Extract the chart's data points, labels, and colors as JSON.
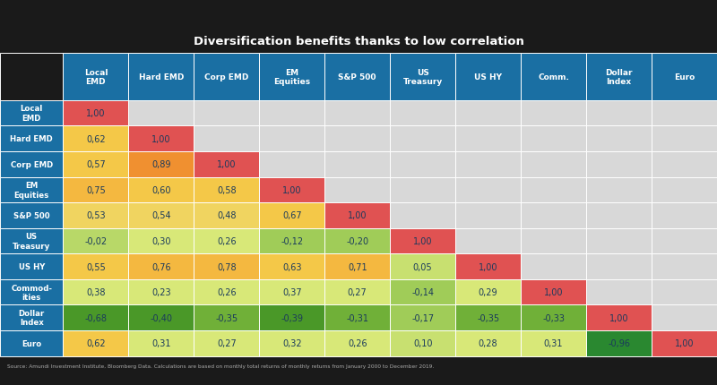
{
  "title": "Diversification benefits thanks to low correlation",
  "col_headers": [
    "Local\nEMD",
    "Hard EMD",
    "Corp EMD",
    "EM\nEquities",
    "S&P 500",
    "US\nTreasury",
    "US HY",
    "Comm.",
    "Dollar\nIndex",
    "Euro"
  ],
  "row_headers": [
    "Local\nEMD",
    "Hard EMD",
    "Corp EMD",
    "EM\nEquities",
    "S&P 500",
    "US\nTreasury",
    "US HY",
    "Commod-\nities",
    "Dollar\nIndex",
    "Euro"
  ],
  "values": [
    [
      1.0,
      null,
      null,
      null,
      null,
      null,
      null,
      null,
      null,
      null
    ],
    [
      0.62,
      1.0,
      null,
      null,
      null,
      null,
      null,
      null,
      null,
      null
    ],
    [
      0.57,
      0.89,
      1.0,
      null,
      null,
      null,
      null,
      null,
      null,
      null
    ],
    [
      0.75,
      0.6,
      0.58,
      1.0,
      null,
      null,
      null,
      null,
      null,
      null
    ],
    [
      0.53,
      0.54,
      0.48,
      0.67,
      1.0,
      null,
      null,
      null,
      null,
      null
    ],
    [
      -0.02,
      0.3,
      0.26,
      -0.12,
      -0.2,
      1.0,
      null,
      null,
      null,
      null
    ],
    [
      0.55,
      0.76,
      0.78,
      0.63,
      0.71,
      0.05,
      1.0,
      null,
      null,
      null
    ],
    [
      0.38,
      0.23,
      0.26,
      0.37,
      0.27,
      -0.14,
      0.29,
      1.0,
      null,
      null
    ],
    [
      -0.68,
      -0.4,
      -0.35,
      -0.39,
      -0.31,
      -0.17,
      -0.35,
      -0.33,
      1.0,
      null
    ],
    [
      0.62,
      0.31,
      0.27,
      0.32,
      0.26,
      0.1,
      0.28,
      0.31,
      -0.96,
      1.0
    ]
  ],
  "source_text": "Source: Amundi Investment Institute, Bloomberg Data. Calculations are based on monthly total returns of monthly returns from January 2000 to December 2019.",
  "header_bg": "#1a6fa3",
  "title_bar_color": "#29abe2",
  "footer_bg": "#3a3a3a",
  "top_bg": "#1a1a1a",
  "empty_cell_bg": "#d8d8d8",
  "diagonal_color": "#e05252",
  "colors": {
    "1.00": "#e05252",
    "high": "#f0a830",
    "med_high": "#f4c84a",
    "med": "#e8d870",
    "low_pos": "#d0e080",
    "near_zero_pos": "#c0da70",
    "near_zero_neg": "#a8cc60",
    "low_neg": "#80b840",
    "med_neg": "#50a020",
    "high_neg": "#3a9a30",
    "very_high_neg": "#2a8830"
  }
}
